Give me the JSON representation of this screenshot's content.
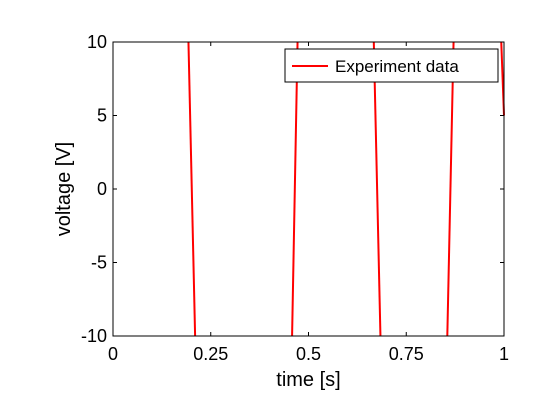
{
  "chart_data": {
    "type": "line",
    "title": "",
    "xlabel": "time [s]",
    "ylabel": "voltage [V]",
    "xlim": [
      0,
      1
    ],
    "ylim": [
      -10,
      10
    ],
    "xticks": [
      0,
      0.25,
      0.5,
      0.75,
      1
    ],
    "xtick_labels": [
      "0",
      "0.25",
      "0.5",
      "0.75",
      "1"
    ],
    "yticks": [
      -10,
      -5,
      0,
      5,
      10
    ],
    "ytick_labels": [
      "-10",
      "-5",
      "0",
      "5",
      "10"
    ],
    "grid": false,
    "legend": "top-right",
    "series": [
      {
        "name": "Experiment data",
        "color": "#ff0000",
        "segments": [
          [
            [
              0.193,
              10
            ],
            [
              0.21,
              -10
            ]
          ],
          [
            [
              0.458,
              -10
            ],
            [
              0.472,
              10
            ]
          ],
          [
            [
              0.667,
              10
            ],
            [
              0.684,
              -10
            ]
          ],
          [
            [
              0.855,
              -10
            ],
            [
              0.871,
              10
            ]
          ],
          [
            [
              0.993,
              10
            ],
            [
              1.0,
              5
            ]
          ]
        ]
      }
    ]
  }
}
